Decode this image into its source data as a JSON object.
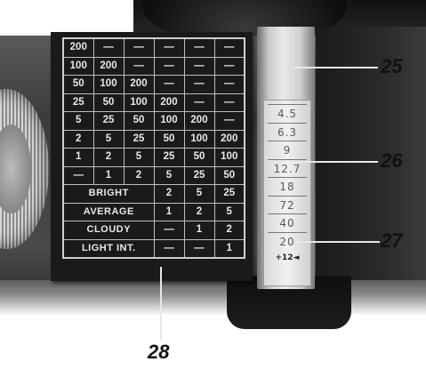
{
  "exposure_table": {
    "rows": [
      [
        "200",
        "—",
        "—",
        "—",
        "—",
        "—"
      ],
      [
        "100",
        "200",
        "—",
        "—",
        "—",
        "—"
      ],
      [
        "50",
        "100",
        "200",
        "—",
        "—",
        "—"
      ],
      [
        "25",
        "50",
        "100",
        "200",
        "—",
        "—"
      ],
      [
        "5",
        "25",
        "50",
        "100",
        "200",
        "—"
      ],
      [
        "2",
        "5",
        "25",
        "50",
        "100",
        "200"
      ],
      [
        "1",
        "2",
        "5",
        "25",
        "50",
        "100"
      ],
      [
        "—",
        "1",
        "2",
        "5",
        "25",
        "50"
      ]
    ],
    "conditions": [
      {
        "label": "BRIGHT",
        "values": [
          "2",
          "5",
          "25"
        ]
      },
      {
        "label": "AVERAGE",
        "values": [
          "1",
          "2",
          "5"
        ]
      },
      {
        "label": "CLOUDY",
        "values": [
          "—",
          "1",
          "2"
        ]
      },
      {
        "label": "LIGHT INT.",
        "values": [
          "—",
          "—",
          "1"
        ]
      }
    ]
  },
  "aperture_scale": {
    "values": [
      "4.5",
      "6.3",
      "9",
      "12.7",
      "18",
      "72",
      "40",
      "20"
    ],
    "marker": "+12◄"
  },
  "callouts": {
    "c25": "25",
    "c26": "26",
    "c27": "27",
    "c28": "28"
  }
}
